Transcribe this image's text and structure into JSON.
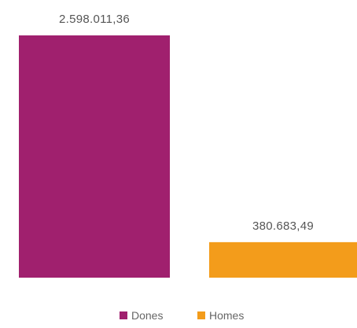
{
  "chart_data": {
    "type": "bar",
    "categories": [
      "Dones",
      "Homes"
    ],
    "values": [
      2598011.36,
      380683.49
    ],
    "data_labels": [
      "2.598.011,36",
      "380.683,49"
    ],
    "series": [
      {
        "name": "Dones",
        "value": 2598011.36,
        "color": "#A0206E"
      },
      {
        "name": "Homes",
        "value": 380683.49,
        "color": "#F39C1B"
      }
    ],
    "ylim": [
      0,
      2598011.36
    ],
    "grid": false,
    "legend": {
      "position": "bottom-center",
      "entries": [
        "Dones",
        "Homes"
      ]
    }
  }
}
